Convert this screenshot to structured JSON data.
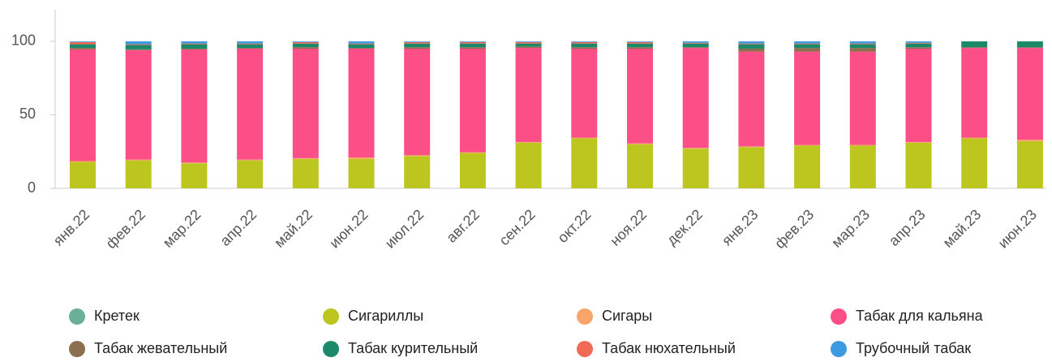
{
  "chart_data": {
    "type": "stacked_bar",
    "categories": [
      "янв.22",
      "фев.22",
      "мар.22",
      "апр.22",
      "май.22",
      "июн.22",
      "июл.22",
      "авг.22",
      "сен.22",
      "окт.22",
      "ноя.22",
      "дек.22",
      "янв.23",
      "фев.23",
      "мар.23",
      "апр.23",
      "май.23",
      "июн.23"
    ],
    "series": [
      {
        "name": "Кретек",
        "color": "#6aaf9a",
        "values": [
          0,
          0,
          0,
          0,
          0,
          0,
          0,
          0,
          0,
          0,
          0,
          0,
          0,
          0,
          0,
          0,
          0,
          0
        ]
      },
      {
        "name": "Сигариллы",
        "color": "#bcc61e",
        "values": [
          18,
          19,
          17,
          19,
          20,
          20,
          22,
          24,
          31,
          34,
          30,
          27,
          28,
          29,
          29,
          31,
          34,
          32
        ]
      },
      {
        "name": "Сигары",
        "color": "#f9a56a",
        "values": [
          0.5,
          0.5,
          0.5,
          0.5,
          0.5,
          1,
          0.5,
          0.5,
          0.5,
          0.5,
          0.5,
          0.5,
          0.5,
          0.5,
          0.5,
          0.5,
          0.5,
          1
        ]
      },
      {
        "name": "Табак для кальяна",
        "color": "#fc4f87",
        "values": [
          76,
          74.5,
          77,
          75.5,
          74.5,
          74,
          72.5,
          70.5,
          64,
          60.5,
          64.5,
          68,
          64.5,
          63.5,
          63.5,
          63.5,
          61,
          62.5
        ]
      },
      {
        "name": "Табак жевательный",
        "color": "#8b6f4e",
        "values": [
          1,
          0.5,
          0.5,
          0.5,
          1,
          0.5,
          1,
          1,
          1,
          1,
          1,
          0.5,
          2,
          2.5,
          2.5,
          1,
          0.5,
          0.5
        ]
      },
      {
        "name": "Табак курительный",
        "color": "#1c8a6a",
        "values": [
          2.5,
          3,
          3,
          2.5,
          2.5,
          2.5,
          2.5,
          2.5,
          2,
          2.5,
          2.5,
          2.5,
          3,
          2.5,
          2.5,
          2.5,
          4,
          4
        ]
      },
      {
        "name": "Табак нюхательный",
        "color": "#f06a55",
        "values": [
          1.5,
          0.5,
          0.5,
          0.5,
          1,
          0.5,
          1,
          1,
          1,
          1,
          1,
          0.5,
          0.5,
          0.5,
          0.5,
          0.5,
          0,
          0
        ]
      },
      {
        "name": "Трубочный табак",
        "color": "#3c9be0",
        "values": [
          0.5,
          2,
          1.5,
          1.5,
          0.5,
          1.5,
          0.5,
          0.5,
          0.5,
          0.5,
          0.5,
          1,
          1.5,
          1.5,
          1.5,
          1,
          0,
          0
        ]
      }
    ],
    "ylim": [
      0,
      121.5
    ],
    "yticks": [
      0,
      50,
      100
    ],
    "legend": "bottom"
  }
}
